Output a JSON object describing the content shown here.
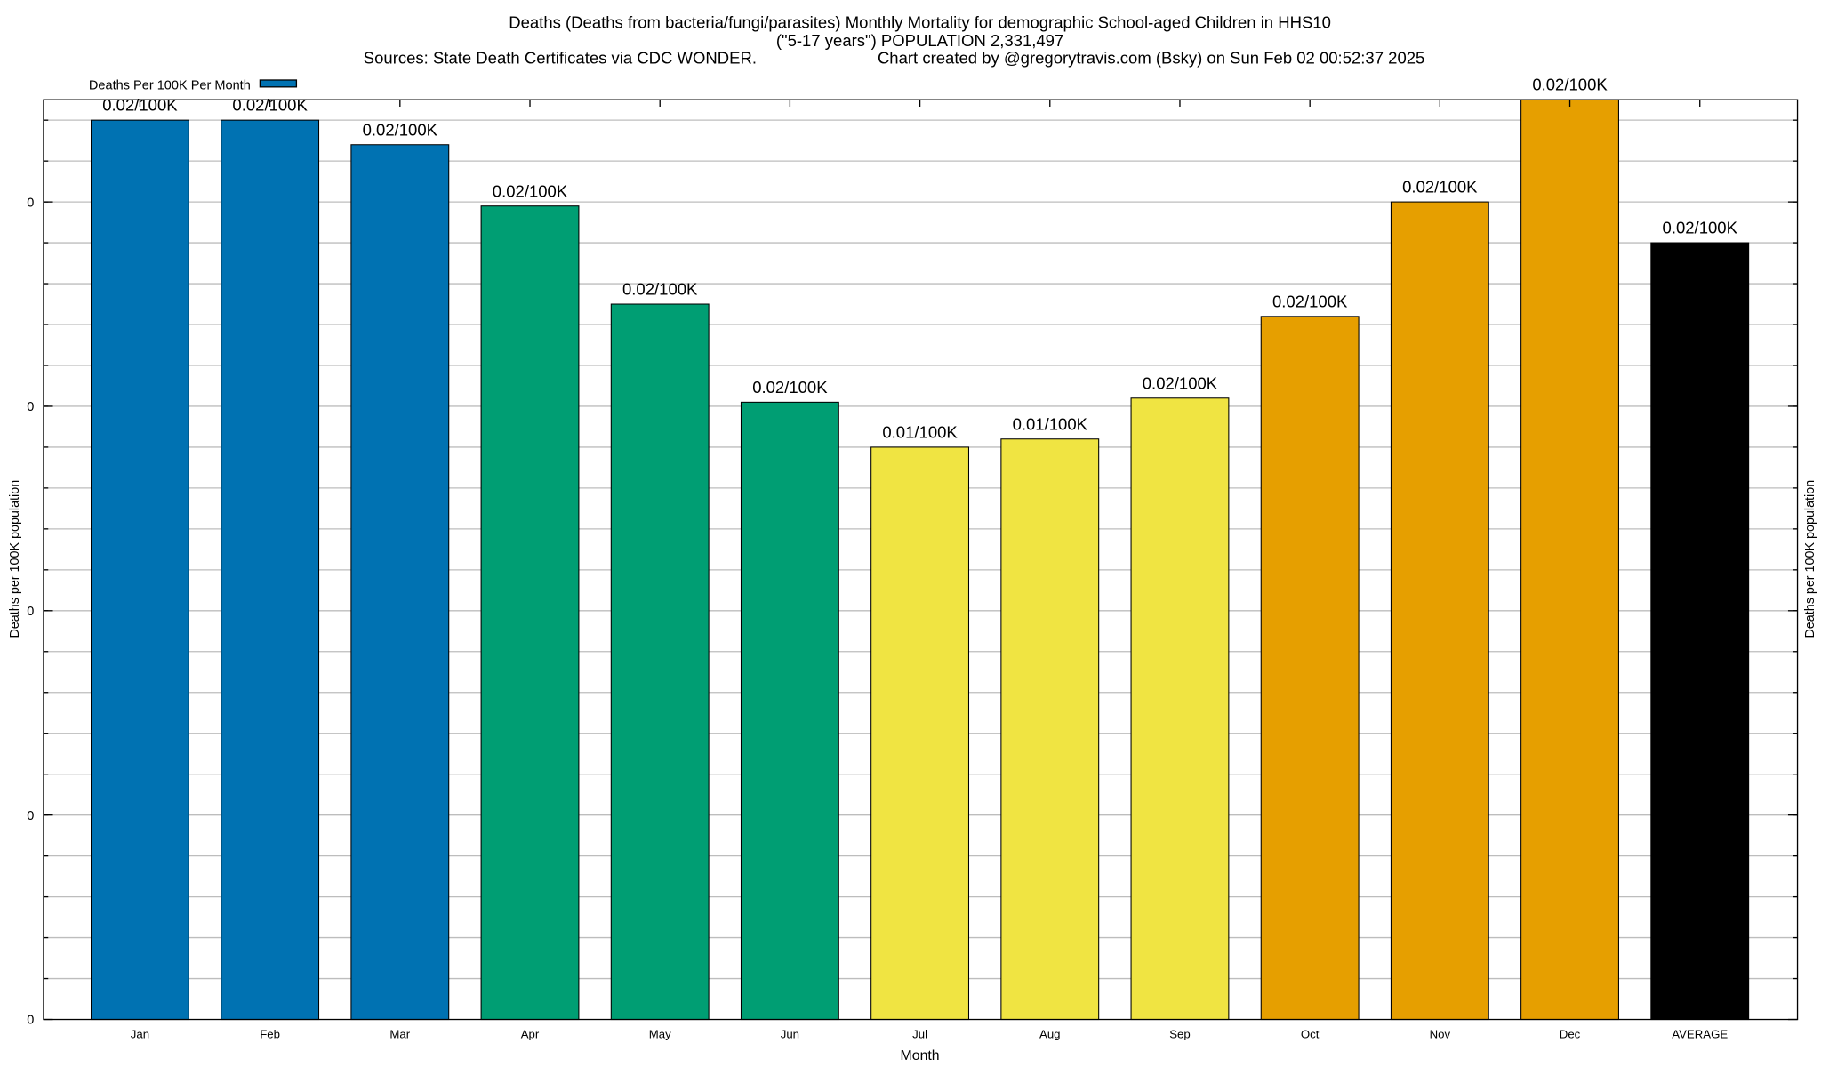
{
  "chart_data": {
    "type": "bar",
    "title_lines": [
      "Deaths (Deaths from bacteria/fungi/parasites) Monthly Mortality for demographic School-aged Children in HHS10",
      "(\"5-17 years\") POPULATION 2,331,497"
    ],
    "sources": "Sources: State Death Certificates via CDC WONDER.",
    "credit": "Chart created by @gregorytravis.com (Bsky) on Sun Feb 02 00:52:37 2025",
    "xlabel": "Month",
    "ylabel": "Deaths per 100K population",
    "y2label": "Deaths per 100K population",
    "legend": {
      "label": "Deaths Per 100K Per Month",
      "position": "top-left"
    },
    "categories": [
      "Jan",
      "Feb",
      "Mar",
      "Apr",
      "May",
      "Jun",
      "Jul",
      "Aug",
      "Sep",
      "Oct",
      "Nov",
      "Dec",
      "AVERAGE"
    ],
    "values": [
      0.022,
      0.022,
      0.0214,
      0.0199,
      0.0175,
      0.0151,
      0.014,
      0.0142,
      0.0152,
      0.0172,
      0.02,
      0.0225,
      0.019
    ],
    "value_labels": [
      "0.02/100K",
      "0.02/100K",
      "0.02/100K",
      "0.02/100K",
      "0.02/100K",
      "0.02/100K",
      "0.01/100K",
      "0.01/100K",
      "0.02/100K",
      "0.02/100K",
      "0.02/100K",
      "0.02/100K",
      "0.02/100K"
    ],
    "colors": [
      "#0072b2",
      "#0072b2",
      "#0072b2",
      "#009e73",
      "#009e73",
      "#009e73",
      "#f0e442",
      "#f0e442",
      "#f0e442",
      "#e69f00",
      "#e69f00",
      "#e69f00",
      "#000000"
    ],
    "ylim": [
      0,
      0.0225
    ],
    "yticks": [
      0,
      0.005,
      0.01,
      0.015,
      0.02
    ],
    "ytick_labels": [
      "0",
      "0",
      "0",
      "0",
      "0"
    ],
    "grid": true
  }
}
